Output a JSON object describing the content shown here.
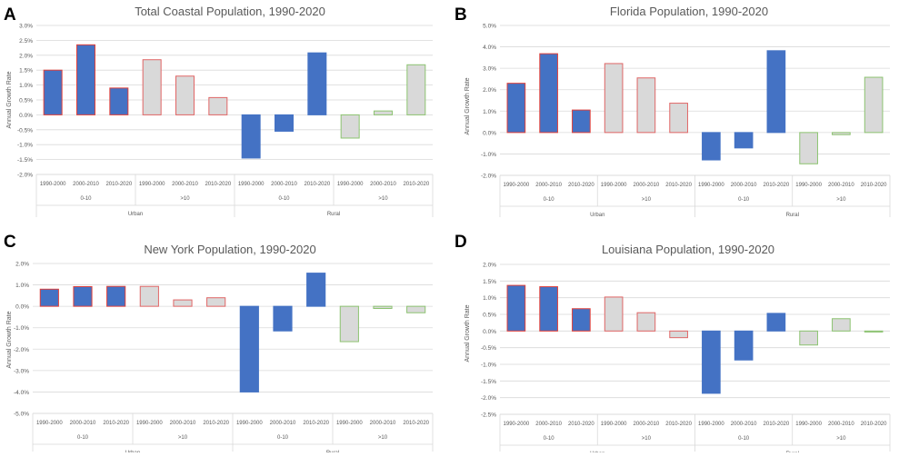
{
  "colors": {
    "urban_fill": "#4472C4",
    "urban_stroke": "#E0403B",
    "rural_fill": "#D9D9D9",
    "rural_stroke_urban": "#E06666",
    "rural_stroke_rural": "#8CC370",
    "grid": "#D9D9D9",
    "axis_text": "#595959"
  },
  "panels": [
    {
      "letter": "A"
    },
    {
      "letter": "B"
    },
    {
      "letter": "C"
    },
    {
      "letter": "D"
    }
  ],
  "chart_data": [
    {
      "type": "bar",
      "title": "Total Coastal Population, 1990-2020",
      "ylabel": "Annual Growth Rate",
      "xlabel": "",
      "ylim": [
        -2.0,
        3.0
      ],
      "yticks": [
        3.0,
        2.5,
        2.0,
        1.5,
        1.0,
        0.5,
        0.0,
        -0.5,
        -1.0,
        -1.5,
        -2.0
      ],
      "ytick_labels": [
        "3.0%",
        "2.5%",
        "2.0%",
        "1.5%",
        "1.0%",
        "0.5%",
        "0.0%",
        "-0.5%",
        "-1.0%",
        "-1.5%",
        "-2.0%"
      ],
      "categories": [
        "1990-2000",
        "2000-2010",
        "2010-2020",
        "1990-2000",
        "2000-2010",
        "2010-2020",
        "1990-2000",
        "2000-2010",
        "2010-2020",
        "1990-2000",
        "2000-2010",
        "2010-2020"
      ],
      "groups": [
        "0-10",
        ">10",
        "0-10",
        ">10"
      ],
      "supergroups": [
        "Urban",
        "Rural"
      ],
      "values": [
        1.5,
        2.35,
        0.9,
        1.85,
        1.3,
        0.58,
        -1.45,
        -0.55,
        2.08,
        -0.78,
        0.13,
        1.68
      ],
      "color_classes": [
        "urban-blue",
        "urban-blue",
        "urban-blue",
        "urban-gray",
        "urban-gray",
        "urban-gray",
        "rural-blue",
        "rural-blue",
        "rural-blue",
        "rural-gray",
        "rural-gray",
        "rural-gray"
      ]
    },
    {
      "type": "bar",
      "title": "Florida Population, 1990-2020",
      "ylabel": "Annual Growth Rate",
      "xlabel": "",
      "ylim": [
        -2.0,
        5.0
      ],
      "yticks": [
        5.0,
        4.0,
        3.0,
        2.0,
        1.0,
        0.0,
        -1.0,
        -2.0
      ],
      "ytick_labels": [
        "5.0%",
        "4.0%",
        "3.0%",
        "2.0%",
        "1.0%",
        "0.0%",
        "-1.0%",
        "-2.0%"
      ],
      "categories": [
        "1990-2000",
        "2000-2010",
        "2010-2020",
        "1990-2000",
        "2000-2010",
        "2010-2020",
        "1990-2000",
        "2000-2010",
        "2010-2020",
        "1990-2000",
        "2000-2010",
        "2010-2020"
      ],
      "groups": [
        "0-10",
        ">10",
        "0-10",
        ">10"
      ],
      "supergroups": [
        "Urban",
        "Rural"
      ],
      "values": [
        2.3,
        3.68,
        1.05,
        3.22,
        2.55,
        1.37,
        -1.28,
        -0.72,
        3.82,
        -1.46,
        -0.1,
        2.58
      ],
      "color_classes": [
        "urban-blue",
        "urban-blue",
        "urban-blue",
        "urban-gray",
        "urban-gray",
        "urban-gray",
        "rural-blue",
        "rural-blue",
        "rural-blue",
        "rural-gray",
        "rural-gray",
        "rural-gray"
      ]
    },
    {
      "type": "bar",
      "title": "New York Population, 1990-2020",
      "ylabel": "Annual Growth Rate",
      "xlabel": "",
      "ylim": [
        -5.0,
        2.0
      ],
      "yticks": [
        2.0,
        1.0,
        0.0,
        -1.0,
        -2.0,
        -3.0,
        -4.0,
        -5.0
      ],
      "ytick_labels": [
        "2.0%",
        "1.0%",
        "0.0%",
        "-1.0%",
        "-2.0%",
        "-3.0%",
        "-4.0%",
        "-5.0%"
      ],
      "categories": [
        "1990-2000",
        "2000-2010",
        "2010-2020",
        "1990-2000",
        "2000-2010",
        "2010-2020",
        "1990-2000",
        "2000-2010",
        "2010-2020",
        "1990-2000",
        "2000-2010",
        "2010-2020"
      ],
      "groups": [
        "0-10",
        ">10",
        "0-10",
        ">10"
      ],
      "supergroups": [
        "Urban",
        "Rural"
      ],
      "values": [
        0.8,
        0.92,
        0.93,
        0.93,
        0.3,
        0.4,
        -4.0,
        -1.15,
        1.55,
        -1.65,
        -0.1,
        -0.3
      ],
      "color_classes": [
        "urban-blue",
        "urban-blue",
        "urban-blue",
        "urban-gray",
        "urban-gray",
        "urban-gray",
        "rural-blue",
        "rural-blue",
        "rural-blue",
        "rural-gray",
        "rural-gray",
        "rural-gray"
      ]
    },
    {
      "type": "bar",
      "title": "Louisiana Population, 1990-2020",
      "ylabel": "Annual Growth Rate",
      "xlabel": "",
      "ylim": [
        -2.5,
        2.0
      ],
      "yticks": [
        2.0,
        1.5,
        1.0,
        0.5,
        0.0,
        -0.5,
        -1.0,
        -1.5,
        -2.0,
        -2.5
      ],
      "ytick_labels": [
        "2.0%",
        "1.5%",
        "1.0%",
        "0.5%",
        "0.0%",
        "-0.5%",
        "-1.0%",
        "-1.5%",
        "-2.0%",
        "-2.5%"
      ],
      "categories": [
        "1990-2000",
        "2000-2010",
        "2010-2020",
        "1990-2000",
        "2000-2010",
        "2010-2020",
        "1990-2000",
        "2000-2010",
        "2010-2020",
        "1990-2000",
        "2000-2010",
        "2010-2020"
      ],
      "groups": [
        "0-10",
        ">10",
        "0-10",
        ">10"
      ],
      "supergroups": [
        "Urban",
        "Rural"
      ],
      "values": [
        1.37,
        1.33,
        0.67,
        1.02,
        0.55,
        -0.2,
        -1.87,
        -0.87,
        0.53,
        -0.42,
        0.37,
        -0.03
      ],
      "color_classes": [
        "urban-blue",
        "urban-blue",
        "urban-blue",
        "urban-gray",
        "urban-gray",
        "urban-gray",
        "rural-blue",
        "rural-blue",
        "rural-blue",
        "rural-gray",
        "rural-gray",
        "rural-gray"
      ]
    }
  ]
}
